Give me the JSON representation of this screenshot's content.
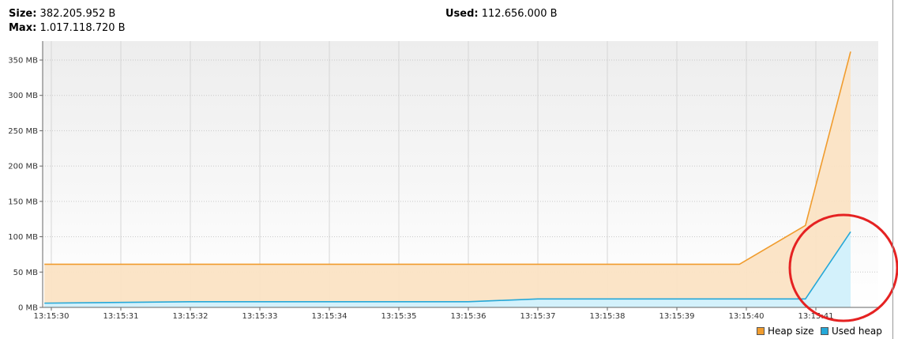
{
  "stats": {
    "size_label": "Size:",
    "size_value": "382.205.952 B",
    "max_label": "Max:",
    "max_value": "1.017.118.720 B",
    "used_label": "Used:",
    "used_value": "112.656.000 B"
  },
  "legend": {
    "heap_label": "Heap size",
    "used_label": "Used heap"
  },
  "colors": {
    "heap_line": "#f09c2e",
    "heap_fill": "#fbe3c4",
    "used_line": "#25a8d8",
    "used_fill": "#d3f1fb",
    "highlight": "#e52222"
  },
  "chart_data": {
    "type": "area",
    "x_ticks": [
      "13:15:30",
      "13:15:31",
      "13:15:32",
      "13:15:33",
      "13:15:34",
      "13:15:35",
      "13:15:36",
      "13:15:37",
      "13:15:38",
      "13:15:39",
      "13:15:40",
      "13:15:41"
    ],
    "y_ticks": [
      "0 MB",
      "50 MB",
      "100 MB",
      "150 MB",
      "200 MB",
      "250 MB",
      "300 MB",
      "350 MB"
    ],
    "ylim": [
      0,
      350
    ],
    "grid": true,
    "legend_position": "bottom-right",
    "series": [
      {
        "name": "Heap size",
        "x": [
          -0.1,
          9.9,
          10.85,
          11.5
        ],
        "y": [
          61,
          61,
          116,
          362
        ]
      },
      {
        "name": "Used heap",
        "x": [
          -0.1,
          2.0,
          6.0,
          7.0,
          10.85,
          11.5
        ],
        "y": [
          6,
          8,
          8,
          12,
          12,
          107
        ]
      }
    ],
    "annotations": [
      "red circle highlighting the Used heap increase after 13:15:41"
    ]
  }
}
